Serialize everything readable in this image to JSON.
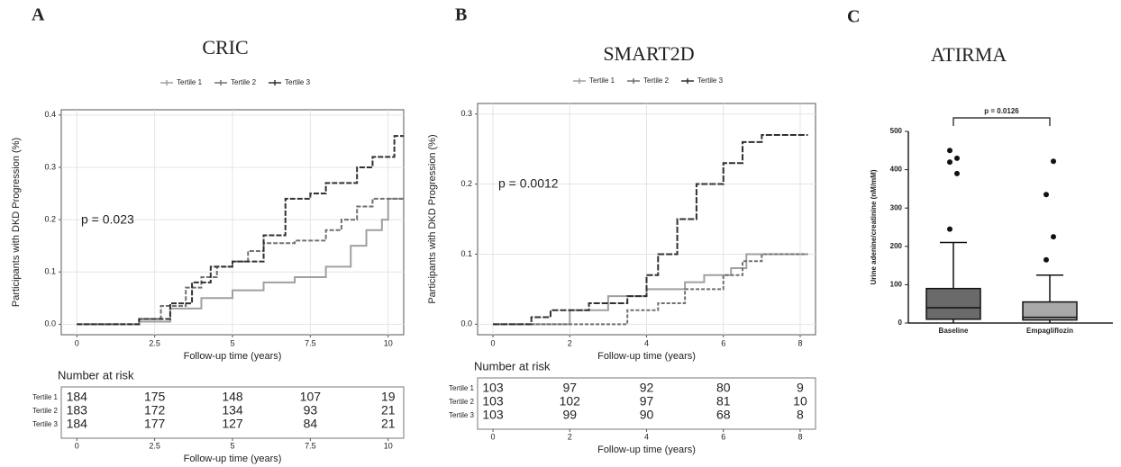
{
  "chart_data": [
    {
      "type": "km",
      "panel": "A",
      "title": "CRIC",
      "xlabel": "Follow-up time (years)",
      "ylabel": "Participants with DKD Progression (%)",
      "annotation": "p = 0.023",
      "xlim": [
        -0.5,
        10.5
      ],
      "xticks": [
        0,
        2.5,
        5,
        7.5,
        10
      ],
      "ylim": [
        -0.02,
        0.41
      ],
      "yticks": [
        {
          "value": 0,
          "label": "0.0"
        },
        0.1,
        0.2,
        0.3,
        0.4
      ],
      "grid": true,
      "series": [
        {
          "name": "Tertile 1",
          "color": "#a0a0a0",
          "dash": "none",
          "x": [
            0,
            2,
            3,
            4,
            5,
            6,
            7,
            8,
            8.8,
            9.3,
            9.8,
            10,
            10.5
          ],
          "values": [
            0,
            0.005,
            0.03,
            0.05,
            0.065,
            0.08,
            0.09,
            0.11,
            0.15,
            0.18,
            0.2,
            0.24,
            0.24
          ]
        },
        {
          "name": "Tertile 2",
          "color": "#707070",
          "dash": "5,2",
          "x": [
            0,
            2,
            2.7,
            3.5,
            4,
            4.5,
            5,
            5.5,
            6,
            7,
            8,
            8.5,
            9,
            9.5,
            10.5
          ],
          "values": [
            0,
            0.01,
            0.035,
            0.07,
            0.09,
            0.11,
            0.12,
            0.14,
            0.155,
            0.16,
            0.18,
            0.2,
            0.225,
            0.24,
            0.24
          ]
        },
        {
          "name": "Tertile 3",
          "color": "#303030",
          "dash": "6,2",
          "x": [
            0,
            2,
            3,
            3.7,
            4.3,
            5,
            6,
            6.7,
            7.5,
            8,
            9,
            9.5,
            10.2,
            10.5
          ],
          "values": [
            0,
            0.01,
            0.04,
            0.08,
            0.11,
            0.12,
            0.17,
            0.24,
            0.25,
            0.27,
            0.3,
            0.32,
            0.36,
            0.36
          ]
        }
      ],
      "risk_table": {
        "title": "Number at risk",
        "xlabel": "Follow-up time (years)",
        "xticks": [
          0,
          2.5,
          5,
          7.5,
          10
        ],
        "rows": [
          {
            "name": "Tertile 1",
            "values": [
              184,
              175,
              148,
              107,
              19
            ]
          },
          {
            "name": "Tertile 2",
            "values": [
              183,
              172,
              134,
              93,
              21
            ]
          },
          {
            "name": "Tertile 3",
            "values": [
              184,
              177,
              127,
              84,
              21
            ]
          }
        ]
      }
    },
    {
      "type": "km",
      "panel": "B",
      "title": "SMART2D",
      "xlabel": "Follow-up time (years)",
      "ylabel": "Participants with DKD Progression (%)",
      "annotation": "p = 0.0012",
      "xlim": [
        -0.4,
        8.4
      ],
      "xticks": [
        0,
        2,
        4,
        6,
        8
      ],
      "ylim": [
        -0.015,
        0.315
      ],
      "yticks": [
        {
          "value": 0,
          "label": "0.0"
        },
        0.1,
        0.2,
        0.3
      ],
      "grid": true,
      "series": [
        {
          "name": "Tertile 1",
          "color": "#a0a0a0",
          "dash": "none",
          "x": [
            0,
            1,
            2,
            3,
            4,
            5,
            5.5,
            6.2,
            6.6,
            8.2
          ],
          "values": [
            0,
            0,
            0.02,
            0.04,
            0.05,
            0.06,
            0.07,
            0.08,
            0.1,
            0.1
          ]
        },
        {
          "name": "Tertile 2",
          "color": "#707070",
          "dash": "4,2",
          "x": [
            0,
            3,
            3.5,
            4.3,
            5,
            6,
            6.5,
            7,
            8.2
          ],
          "values": [
            0,
            0,
            0.02,
            0.03,
            0.05,
            0.07,
            0.09,
            0.1,
            0.1
          ]
        },
        {
          "name": "Tertile 3",
          "color": "#303030",
          "dash": "7,2",
          "x": [
            0,
            1,
            1.5,
            2.5,
            3.5,
            4,
            4.3,
            4.8,
            5.3,
            6,
            6.5,
            7,
            8.2
          ],
          "values": [
            0,
            0.01,
            0.02,
            0.03,
            0.04,
            0.07,
            0.1,
            0.15,
            0.2,
            0.23,
            0.26,
            0.27,
            0.27
          ]
        }
      ],
      "risk_table": {
        "title": "Number at risk",
        "xlabel": "Follow-up time (years)",
        "xticks": [
          0,
          2,
          4,
          6,
          8
        ],
        "rows": [
          {
            "name": "Tertile 1",
            "values": [
              103,
              97,
              92,
              80,
              9
            ]
          },
          {
            "name": "Tertile 2",
            "values": [
              103,
              102,
              97,
              81,
              10
            ]
          },
          {
            "name": "Tertile 3",
            "values": [
              103,
              99,
              90,
              68,
              8
            ]
          }
        ]
      }
    },
    {
      "type": "box",
      "panel": "C",
      "title": "ATIRMA",
      "ylabel": "Urine adenine/creatinine (nM/mM)",
      "annotation": "p = 0.0126",
      "categories": [
        "Baseline",
        "Empagliflozin"
      ],
      "ylim": [
        0,
        500
      ],
      "yticks": [
        0,
        100,
        200,
        300,
        400,
        500
      ],
      "boxes": [
        {
          "color": "#6a6a6a",
          "whislo": 0,
          "q1": 10,
          "med": 40,
          "q3": 90,
          "whishi": 210,
          "outliers": [
            245,
            390,
            420,
            430,
            450
          ]
        },
        {
          "color": "#a8a8a8",
          "whislo": 0,
          "q1": 8,
          "med": 15,
          "q3": 55,
          "whishi": 125,
          "outliers": [
            165,
            225,
            335,
            422
          ]
        }
      ]
    }
  ]
}
